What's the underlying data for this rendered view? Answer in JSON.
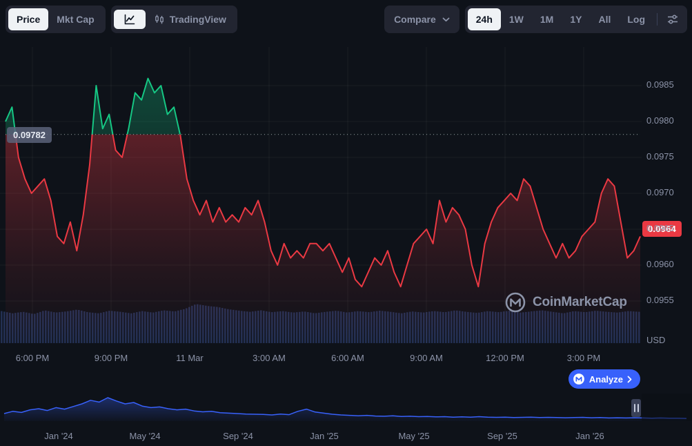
{
  "toolbar": {
    "metric_toggle": {
      "price": "Price",
      "mkt_cap": "Mkt Cap"
    },
    "chart_type": {
      "tradingview": "TradingView"
    },
    "compare_label": "Compare",
    "timeframes": [
      "24h",
      "1W",
      "1M",
      "1Y",
      "All",
      "Log"
    ],
    "active_timeframe": "24h"
  },
  "chart": {
    "baseline_label": "0.09782",
    "current_price": "0.0964",
    "y_axis_unit": "USD"
  },
  "watermark": {
    "text": "CoinMarketCap"
  },
  "analyze": {
    "label": "Analyze"
  },
  "colors": {
    "up": "#16C784",
    "down": "#EA3943",
    "accent_blue": "#3861FB",
    "volume": "rgba(97,136,251,0.26)"
  },
  "chart_data": [
    {
      "type": "line",
      "name": "price-24h",
      "unit": "USD",
      "baseline": 0.09782,
      "last": 0.0964,
      "ylim": [
        0.0949,
        0.099
      ],
      "y_ticks": [
        0.0985,
        0.098,
        0.0975,
        0.097,
        0.0965,
        0.096,
        0.0955
      ],
      "x_ticks": [
        "6:00 PM",
        "9:00 PM",
        "11 Mar",
        "3:00 AM",
        "6:00 AM",
        "9:00 AM",
        "12:00 PM",
        "3:00 PM"
      ],
      "values": [
        0.098,
        0.0982,
        0.0975,
        0.0972,
        0.097,
        0.0971,
        0.0972,
        0.0969,
        0.0964,
        0.0963,
        0.0966,
        0.0962,
        0.0967,
        0.0974,
        0.0985,
        0.0979,
        0.0981,
        0.0976,
        0.0975,
        0.0979,
        0.0984,
        0.0983,
        0.0986,
        0.0984,
        0.0985,
        0.0981,
        0.0982,
        0.0978,
        0.0972,
        0.0969,
        0.0967,
        0.0969,
        0.0966,
        0.0968,
        0.0966,
        0.0967,
        0.0966,
        0.0968,
        0.0967,
        0.0969,
        0.0966,
        0.0962,
        0.096,
        0.0963,
        0.0961,
        0.0962,
        0.0961,
        0.0963,
        0.0963,
        0.0962,
        0.0963,
        0.0961,
        0.0959,
        0.0961,
        0.0958,
        0.0957,
        0.0959,
        0.0961,
        0.096,
        0.0962,
        0.0959,
        0.0957,
        0.096,
        0.0963,
        0.0964,
        0.0965,
        0.0963,
        0.0969,
        0.0966,
        0.0968,
        0.0967,
        0.0965,
        0.096,
        0.0957,
        0.0963,
        0.0966,
        0.0968,
        0.0969,
        0.097,
        0.0969,
        0.0972,
        0.0971,
        0.0968,
        0.0965,
        0.0963,
        0.0961,
        0.0963,
        0.0961,
        0.0962,
        0.0964,
        0.0965,
        0.0966,
        0.097,
        0.0972,
        0.0971,
        0.0966,
        0.0961,
        0.0962,
        0.0964
      ],
      "volume": [
        0.86,
        0.8,
        0.84,
        0.78,
        0.88,
        0.82,
        0.85,
        0.9,
        0.83,
        0.8,
        0.87,
        0.84,
        0.8,
        0.86,
        0.82,
        0.88,
        0.85,
        0.92,
        1.05,
        1.0,
        0.97,
        0.91,
        0.87,
        0.84,
        0.88,
        0.83,
        0.86,
        0.82,
        0.85,
        0.8,
        0.84,
        0.87,
        0.82,
        0.86,
        0.83,
        0.87,
        0.84,
        0.8,
        0.85,
        0.82,
        0.86,
        0.83,
        0.88,
        0.84,
        0.81,
        0.86,
        0.83,
        0.87,
        0.82,
        0.85,
        0.88,
        0.84,
        0.8,
        0.86,
        0.83,
        0.87,
        0.84,
        0.82,
        0.86,
        0.84
      ]
    },
    {
      "type": "area",
      "name": "range-selector-history",
      "x_ticks": [
        "Jan '24",
        "May '24",
        "Sep '24",
        "Jan '25",
        "May '25",
        "Sep '25",
        "Jan '26"
      ],
      "values": [
        0.28,
        0.38,
        0.33,
        0.45,
        0.5,
        0.42,
        0.55,
        0.48,
        0.6,
        0.72,
        0.88,
        0.8,
        1.0,
        0.85,
        0.72,
        0.78,
        0.62,
        0.55,
        0.58,
        0.5,
        0.45,
        0.48,
        0.4,
        0.36,
        0.38,
        0.32,
        0.3,
        0.28,
        0.26,
        0.25,
        0.24,
        0.22,
        0.26,
        0.23,
        0.38,
        0.48,
        0.35,
        0.3,
        0.25,
        0.22,
        0.2,
        0.18,
        0.2,
        0.17,
        0.16,
        0.18,
        0.15,
        0.16,
        0.14,
        0.15,
        0.13,
        0.14,
        0.12,
        0.13,
        0.12,
        0.14,
        0.12,
        0.11,
        0.12,
        0.1,
        0.11,
        0.12,
        0.1,
        0.11,
        0.1,
        0.09,
        0.1,
        0.11,
        0.09,
        0.1,
        0.08,
        0.09,
        0.08,
        0.09,
        0.08,
        0.07,
        0.08,
        0.07,
        0.07,
        0.06
      ]
    }
  ]
}
